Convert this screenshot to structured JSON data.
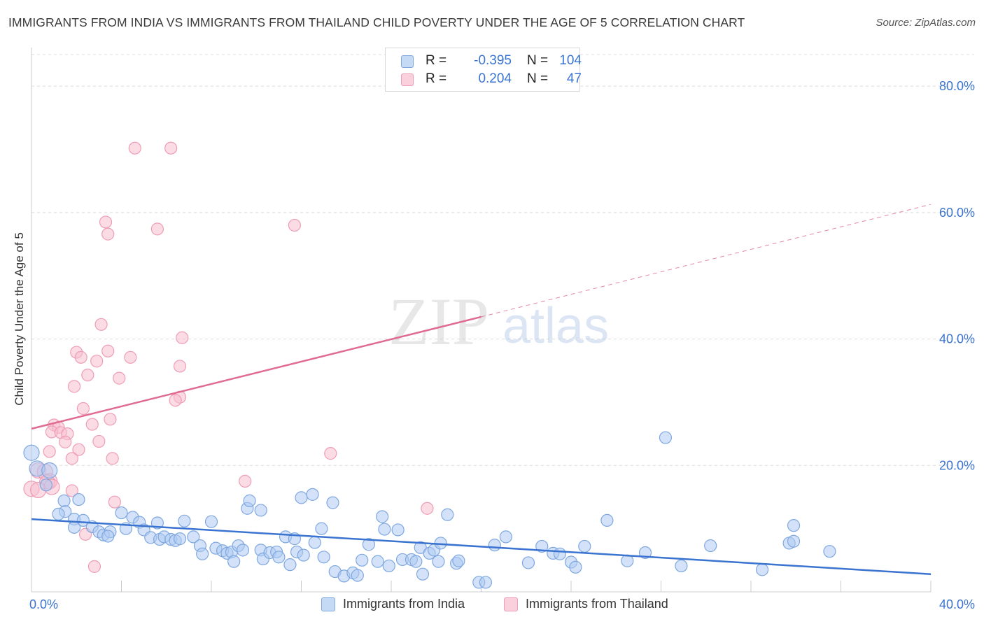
{
  "title": "IMMIGRANTS FROM INDIA VS IMMIGRANTS FROM THAILAND CHILD POVERTY UNDER THE AGE OF 5 CORRELATION CHART",
  "source": "Source: ZipAtlas.com",
  "watermark": {
    "zip": "ZIP",
    "atlas": "atlas"
  },
  "colors": {
    "india_fill": "#aecbf2",
    "india_stroke": "#7fa8e0",
    "india_line": "#3a74d0",
    "thailand_fill": "#f7bfd0",
    "thailand_stroke": "#ee9db6",
    "thailand_line": "#e06a90",
    "axis_text": "#3a74d0",
    "grid": "#dcdcdc"
  },
  "legend": {
    "india": {
      "r_label": "R =",
      "r_value": "-0.395",
      "n_label": "N =",
      "n_value": "104"
    },
    "thailand": {
      "r_label": "R =",
      "r_value": "0.204",
      "n_label": "N =",
      "n_value": "47"
    }
  },
  "bottom_legend": {
    "india": "Immigrants from India",
    "thailand": "Immigrants from Thailand"
  },
  "chart_data": {
    "type": "scatter",
    "title": "IMMIGRANTS FROM INDIA VS IMMIGRANTS FROM THAILAND CHILD POVERTY UNDER THE AGE OF 5 CORRELATION CHART",
    "xlabel": "",
    "ylabel": "Child Poverty Under the Age of 5",
    "xlim": [
      0,
      40
    ],
    "ylim": [
      0,
      85
    ],
    "x_tick_labels": [
      {
        "value": 0,
        "label": "0.0%"
      },
      {
        "value": 40,
        "label": "40.0%"
      }
    ],
    "x_minor_ticks": [
      4,
      8,
      12,
      16,
      20,
      24,
      28,
      32,
      36
    ],
    "y_ticks": [
      {
        "value": 20,
        "label": "20.0%"
      },
      {
        "value": 40,
        "label": "40.0%"
      },
      {
        "value": 60,
        "label": "60.0%"
      },
      {
        "value": 80,
        "label": "80.0%"
      }
    ],
    "grid": true,
    "legend_position": "top-center",
    "series": [
      {
        "name": "Immigrants from India",
        "key": "india",
        "r": -0.395,
        "n": 104,
        "trend": {
          "x0": 0,
          "y0": 11.5,
          "x1": 40,
          "y1": 2.8
        },
        "points": [
          [
            0,
            22
          ],
          [
            0.25,
            19.5
          ],
          [
            0.8,
            19.2
          ],
          [
            0.65,
            16.9
          ],
          [
            1.45,
            14.4
          ],
          [
            2.1,
            14.6
          ],
          [
            1.5,
            12.7
          ],
          [
            1.2,
            12.3
          ],
          [
            1.9,
            11.5
          ],
          [
            2.3,
            11.3
          ],
          [
            1.9,
            10.2
          ],
          [
            2.7,
            10.3
          ],
          [
            3.0,
            9.5
          ],
          [
            3.2,
            9.0
          ],
          [
            3.5,
            9.5
          ],
          [
            3.4,
            8.8
          ],
          [
            4.0,
            12.5
          ],
          [
            4.2,
            10.0
          ],
          [
            4.5,
            11.8
          ],
          [
            4.8,
            11.0
          ],
          [
            5.0,
            9.8
          ],
          [
            5.3,
            8.6
          ],
          [
            5.6,
            10.9
          ],
          [
            5.7,
            8.3
          ],
          [
            5.9,
            8.7
          ],
          [
            6.2,
            8.3
          ],
          [
            6.4,
            8.1
          ],
          [
            6.8,
            11.2
          ],
          [
            6.6,
            8.4
          ],
          [
            7.2,
            8.7
          ],
          [
            7.5,
            7.3
          ],
          [
            7.6,
            6.0
          ],
          [
            8.0,
            11.1
          ],
          [
            8.2,
            6.9
          ],
          [
            8.5,
            6.5
          ],
          [
            8.7,
            6.1
          ],
          [
            8.9,
            6.3
          ],
          [
            9.2,
            7.3
          ],
          [
            9.4,
            6.6
          ],
          [
            9.0,
            4.8
          ],
          [
            9.6,
            13.2
          ],
          [
            9.7,
            14.4
          ],
          [
            10.2,
            6.6
          ],
          [
            10.3,
            5.2
          ],
          [
            10.6,
            6.2
          ],
          [
            10.9,
            6.3
          ],
          [
            10.2,
            12.9
          ],
          [
            11.0,
            5.5
          ],
          [
            11.3,
            8.7
          ],
          [
            11.5,
            4.3
          ],
          [
            11.7,
            8.4
          ],
          [
            11.8,
            6.3
          ],
          [
            12.1,
            5.8
          ],
          [
            12.0,
            14.9
          ],
          [
            12.5,
            15.4
          ],
          [
            12.6,
            7.8
          ],
          [
            12.9,
            10.0
          ],
          [
            13.0,
            5.5
          ],
          [
            13.4,
            14.1
          ],
          [
            13.5,
            3.2
          ],
          [
            13.9,
            2.5
          ],
          [
            14.3,
            3.0
          ],
          [
            14.5,
            2.6
          ],
          [
            14.7,
            5.0
          ],
          [
            15.0,
            7.5
          ],
          [
            15.6,
            11.9
          ],
          [
            15.7,
            9.9
          ],
          [
            15.4,
            4.8
          ],
          [
            15.9,
            4.1
          ],
          [
            16.3,
            9.8
          ],
          [
            16.5,
            5.1
          ],
          [
            16.9,
            5.1
          ],
          [
            17.1,
            4.8
          ],
          [
            17.3,
            7.0
          ],
          [
            17.7,
            6.1
          ],
          [
            17.4,
            2.8
          ],
          [
            17.9,
            6.6
          ],
          [
            18.1,
            4.8
          ],
          [
            18.2,
            7.7
          ],
          [
            18.5,
            12.2
          ],
          [
            18.9,
            4.5
          ],
          [
            19.0,
            4.9
          ],
          [
            19.9,
            1.5
          ],
          [
            20.2,
            1.5
          ],
          [
            20.6,
            7.4
          ],
          [
            21.1,
            8.7
          ],
          [
            22.1,
            4.6
          ],
          [
            22.7,
            7.2
          ],
          [
            23.2,
            6.1
          ],
          [
            23.5,
            6.0
          ],
          [
            24.0,
            4.7
          ],
          [
            24.2,
            3.9
          ],
          [
            24.6,
            7.2
          ],
          [
            25.6,
            11.3
          ],
          [
            26.5,
            4.9
          ],
          [
            27.3,
            6.2
          ],
          [
            28.9,
            4.1
          ],
          [
            28.2,
            24.4
          ],
          [
            30.2,
            7.3
          ],
          [
            33.7,
            7.7
          ],
          [
            33.9,
            8.0
          ],
          [
            33.9,
            10.5
          ],
          [
            35.5,
            6.4
          ],
          [
            32.5,
            3.5
          ]
        ]
      },
      {
        "name": "Immigrants from Thailand",
        "key": "thailand",
        "r": 0.204,
        "n": 47,
        "trend": {
          "x0": 0,
          "y0": 25.8,
          "x1": 20,
          "y1": 43.5,
          "dash_to_x": 40,
          "dash_to_y": 61.3
        },
        "points": [
          [
            4.6,
            70.2
          ],
          [
            6.2,
            70.2
          ],
          [
            3.3,
            58.5
          ],
          [
            3.4,
            56.6
          ],
          [
            5.6,
            57.4
          ],
          [
            11.7,
            58.0
          ],
          [
            3.1,
            42.3
          ],
          [
            6.7,
            40.2
          ],
          [
            2.0,
            37.9
          ],
          [
            3.4,
            38.1
          ],
          [
            2.2,
            37.1
          ],
          [
            2.9,
            36.5
          ],
          [
            4.4,
            37.1
          ],
          [
            6.6,
            35.7
          ],
          [
            2.5,
            34.3
          ],
          [
            3.9,
            33.8
          ],
          [
            1.9,
            32.5
          ],
          [
            6.6,
            30.8
          ],
          [
            6.4,
            30.3
          ],
          [
            2.3,
            29.0
          ],
          [
            3.5,
            27.3
          ],
          [
            2.7,
            26.5
          ],
          [
            1.0,
            26.4
          ],
          [
            1.2,
            26.0
          ],
          [
            0.9,
            25.3
          ],
          [
            1.3,
            25.2
          ],
          [
            1.6,
            25.0
          ],
          [
            3.0,
            23.8
          ],
          [
            1.5,
            23.7
          ],
          [
            2.1,
            22.5
          ],
          [
            0.8,
            22.2
          ],
          [
            1.8,
            21.1
          ],
          [
            3.6,
            21.1
          ],
          [
            13.3,
            21.9
          ],
          [
            0.3,
            19.2
          ],
          [
            0.6,
            19.0
          ],
          [
            0.8,
            17.5
          ],
          [
            0.7,
            17.3
          ],
          [
            0.0,
            16.3
          ],
          [
            0.3,
            16.1
          ],
          [
            0.9,
            16.6
          ],
          [
            1.8,
            16.0
          ],
          [
            9.5,
            17.5
          ],
          [
            3.7,
            14.2
          ],
          [
            17.6,
            13.2
          ],
          [
            2.4,
            9.1
          ],
          [
            2.8,
            4.0
          ]
        ]
      }
    ]
  }
}
